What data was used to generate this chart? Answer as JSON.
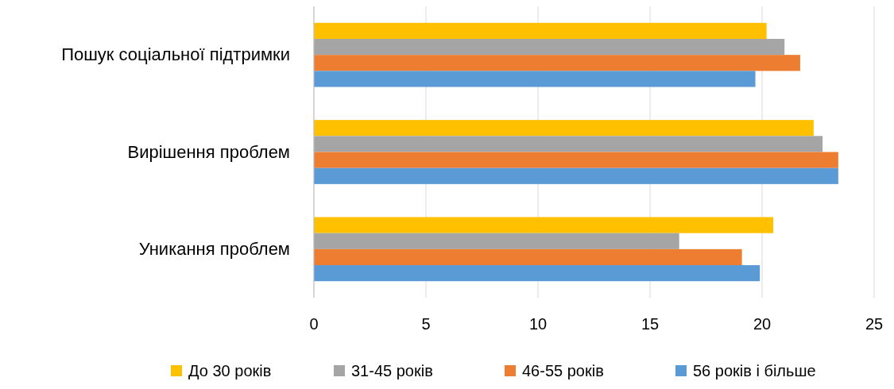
{
  "chart_data": {
    "type": "bar",
    "orientation": "horizontal",
    "categories": [
      "Пошук соціальної підтримки",
      "Вирішення проблем",
      "Уникання проблем"
    ],
    "series": [
      {
        "name": "До 30 років",
        "color": "#ffc000",
        "values": [
          20.2,
          22.3,
          20.5
        ]
      },
      {
        "name": "31-45 років",
        "color": "#a5a5a5",
        "values": [
          21.0,
          22.7,
          16.3
        ]
      },
      {
        "name": "46-55 років",
        "color": "#ed7d31",
        "values": [
          21.7,
          23.4,
          19.1
        ]
      },
      {
        "name": "56 років і більше",
        "color": "#5b9bd5",
        "values": [
          19.7,
          23.4,
          19.9
        ]
      }
    ],
    "xlim": [
      0,
      25
    ],
    "xticks": [
      0,
      5,
      10,
      15,
      20,
      25
    ],
    "grid": "x",
    "legend": "bottom"
  }
}
